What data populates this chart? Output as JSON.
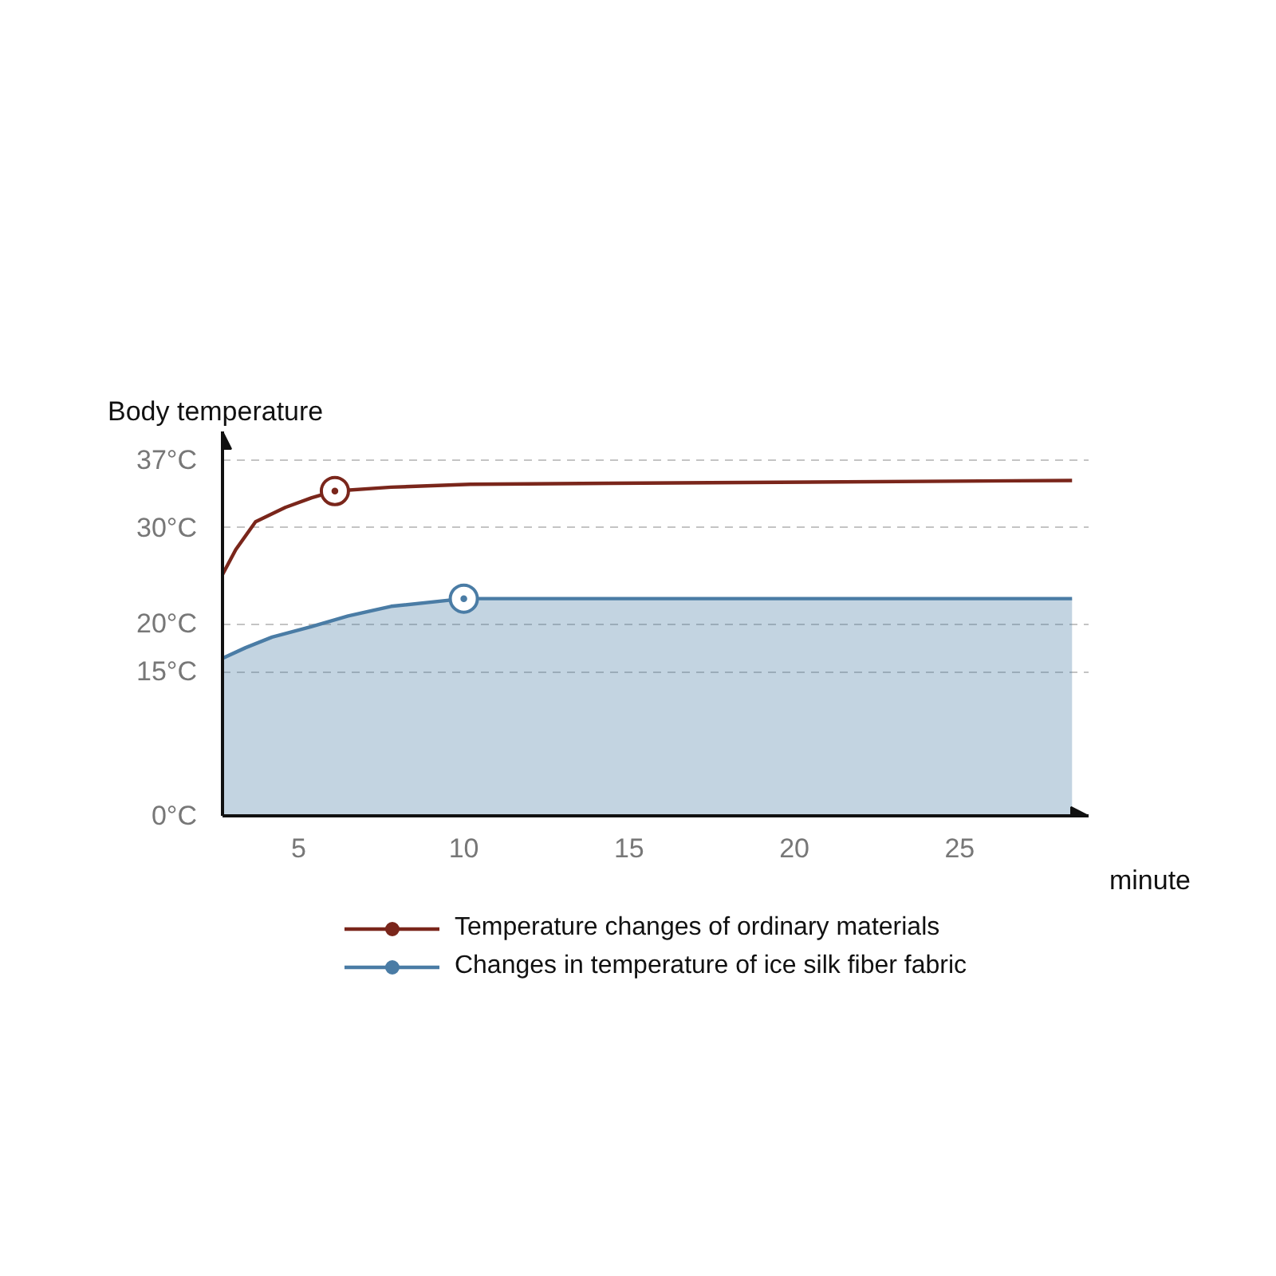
{
  "chart_data": {
    "type": "line",
    "xlabel": "minute",
    "ylabel": "Body temperature",
    "xlim": [
      2.7,
      28.9
    ],
    "ylim": [
      0,
      40
    ],
    "xticks": [
      5,
      10,
      15,
      20,
      25
    ],
    "yticks": [
      {
        "value": 0,
        "label": "0°C"
      },
      {
        "value": 15,
        "label": "15°C"
      },
      {
        "value": 20,
        "label": "20°C"
      },
      {
        "value": 30,
        "label": "30°C"
      },
      {
        "value": 37,
        "label": "37°C"
      }
    ],
    "grid": "y",
    "legend": "bottom",
    "series": [
      {
        "name": "Temperature changes of ordinary materials",
        "color": "#7a261b",
        "x": [
          2.7,
          3.1,
          3.7,
          4.6,
          5.4,
          6.1,
          7.8,
          10.2,
          14.4,
          28.4
        ],
        "values": [
          25.1,
          27.7,
          30.6,
          32.1,
          33.1,
          33.8,
          34.2,
          34.5,
          34.6,
          34.9
        ]
      },
      {
        "name": "Changes in temperature of ice silk fiber fabric",
        "type": "area",
        "color": "#4a7ca5",
        "x": [
          2.7,
          3.4,
          4.2,
          5.4,
          6.5,
          7.8,
          10,
          28.4
        ],
        "values": [
          16.4,
          17.5,
          18.6,
          19.7,
          20.8,
          21.8,
          22.6,
          22.6
        ]
      },
      {
        "type": "scatter",
        "marker": "circle",
        "color": "#7a261b",
        "x": [
          6.1
        ],
        "values": [
          33.8
        ]
      },
      {
        "type": "scatter",
        "marker": "circle",
        "color": "#4a7ca5",
        "x": [
          10
        ],
        "values": [
          22.6
        ]
      }
    ]
  }
}
